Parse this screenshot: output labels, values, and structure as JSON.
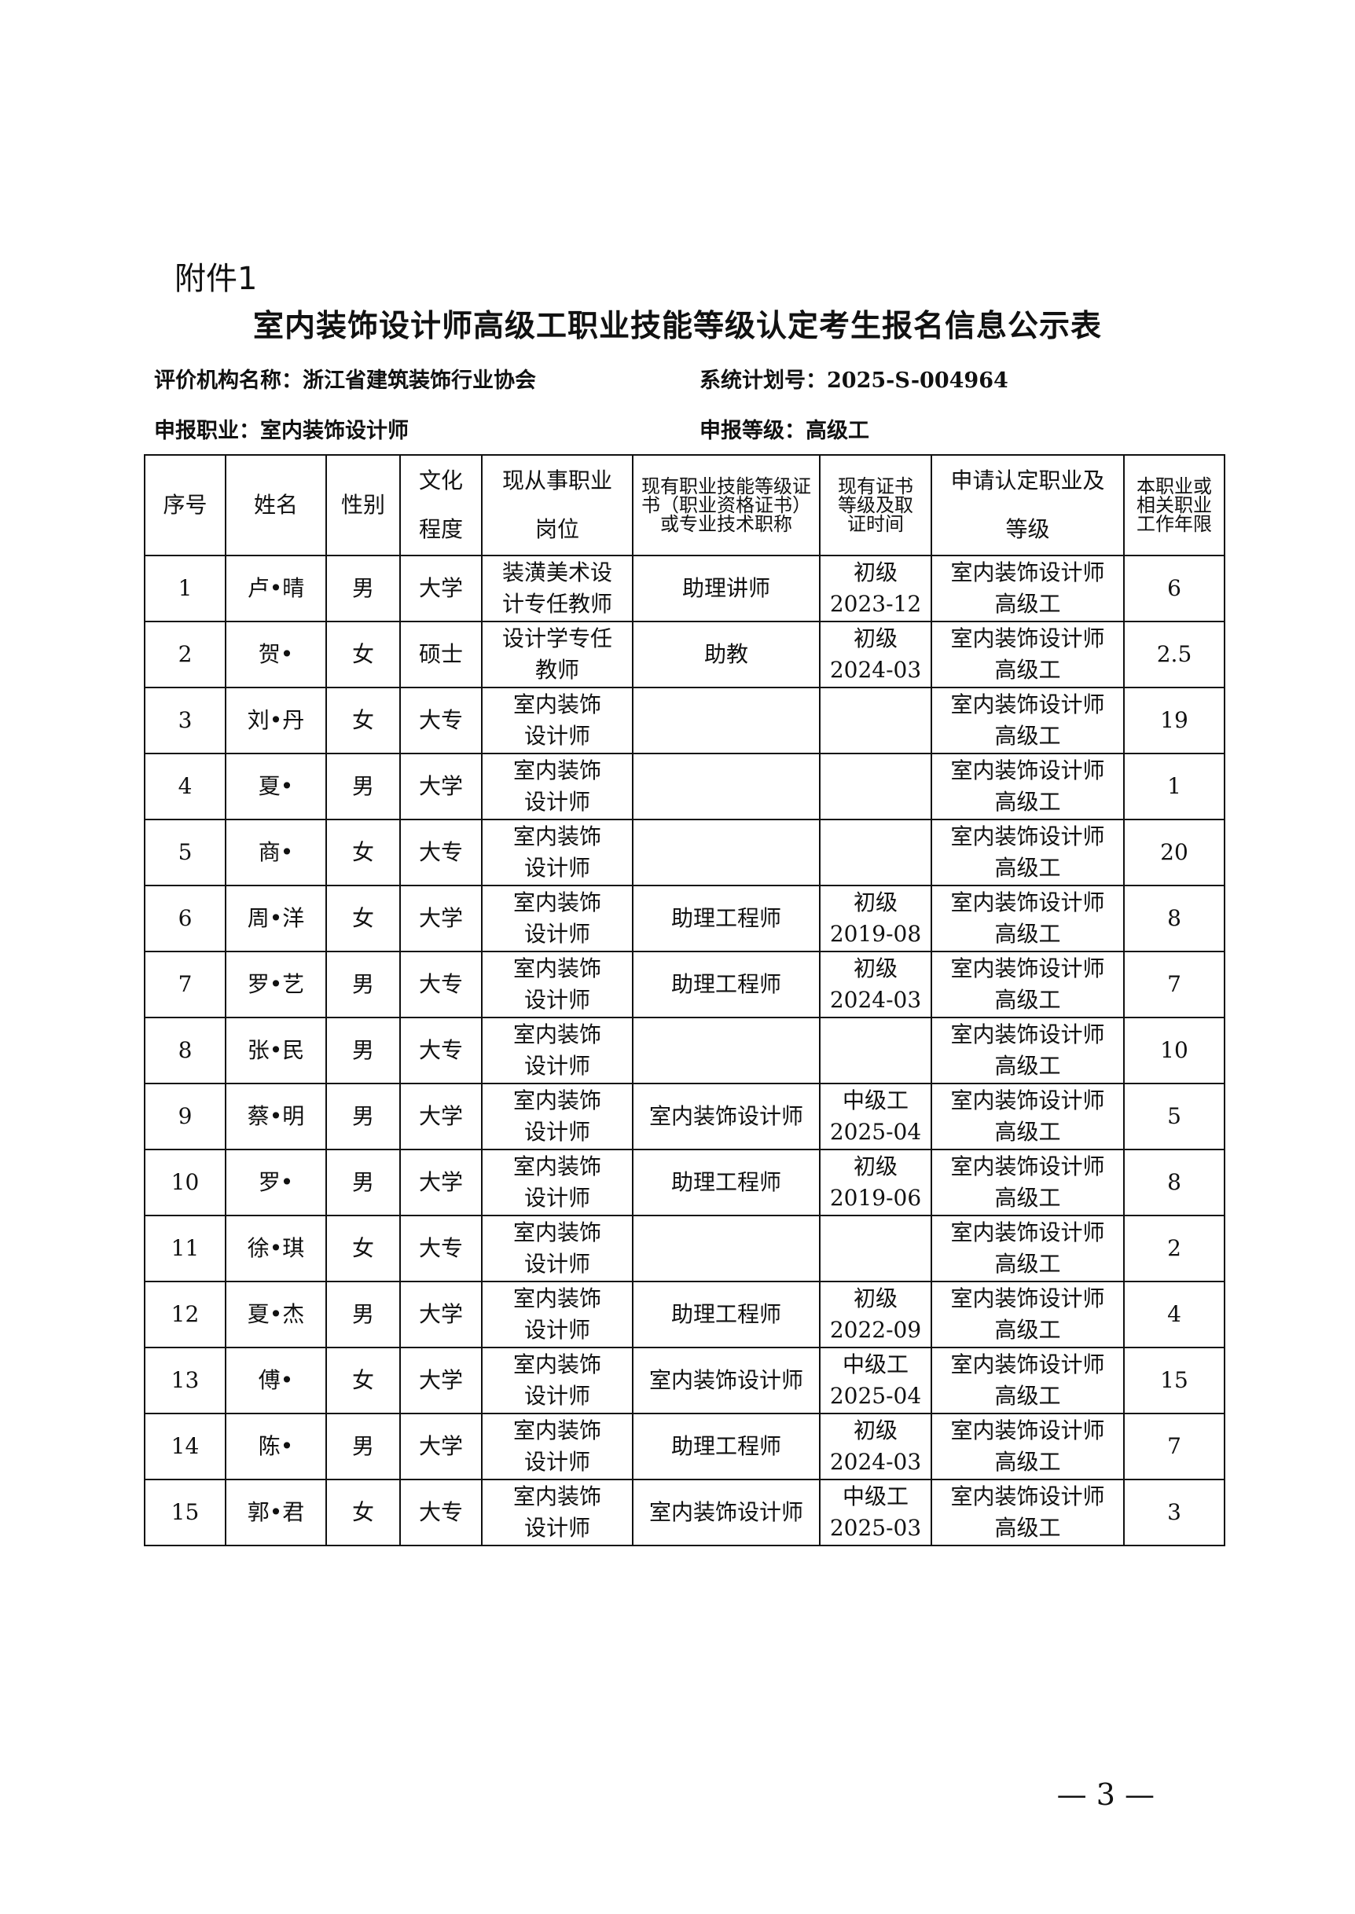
{
  "attachment_label": "附件1",
  "title": "室内装饰设计师高级工职业技能等级认定考生报名信息公示表",
  "meta": {
    "org_label": "评价机构名称：",
    "org_value": "浙江省建筑装饰行业协会",
    "plan_label": "系统计划号：",
    "plan_value": "2025-S-004964",
    "occupation_label": "申报职业：",
    "occupation_value": "室内装饰设计师",
    "level_label": "申报等级：",
    "level_value": "高级工"
  },
  "table": {
    "headers": [
      "序号",
      "姓名",
      "性别",
      "文化\n程度",
      "现从事职业\n岗位",
      "现有职业技能等级证书（职业资格证书）或专业技术职称",
      "现有证书等级及取证时间",
      "申请认定职业及\n等级",
      "本职业或相关职业工作年限"
    ],
    "rows": [
      [
        "1",
        "卢•晴",
        "男",
        "大学",
        "装潢美术设\n计专任教师",
        "助理讲师",
        "初级\n2023-12",
        "室内装饰设计师\n高级工",
        "6"
      ],
      [
        "2",
        "贺•",
        "女",
        "硕士",
        "设计学专任\n教师",
        "助教",
        "初级\n2024-03",
        "室内装饰设计师\n高级工",
        "2.5"
      ],
      [
        "3",
        "刘•丹",
        "女",
        "大专",
        "室内装饰\n设计师",
        "",
        "",
        "室内装饰设计师\n高级工",
        "19"
      ],
      [
        "4",
        "夏•",
        "男",
        "大学",
        "室内装饰\n设计师",
        "",
        "",
        "室内装饰设计师\n高级工",
        "1"
      ],
      [
        "5",
        "商•",
        "女",
        "大专",
        "室内装饰\n设计师",
        "",
        "",
        "室内装饰设计师\n高级工",
        "20"
      ],
      [
        "6",
        "周•洋",
        "女",
        "大学",
        "室内装饰\n设计师",
        "助理工程师",
        "初级\n2019-08",
        "室内装饰设计师\n高级工",
        "8"
      ],
      [
        "7",
        "罗•艺",
        "男",
        "大专",
        "室内装饰\n设计师",
        "助理工程师",
        "初级\n2024-03",
        "室内装饰设计师\n高级工",
        "7"
      ],
      [
        "8",
        "张•民",
        "男",
        "大专",
        "室内装饰\n设计师",
        "",
        "",
        "室内装饰设计师\n高级工",
        "10"
      ],
      [
        "9",
        "蔡•明",
        "男",
        "大学",
        "室内装饰\n设计师",
        "室内装饰设计师",
        "中级工\n2025-04",
        "室内装饰设计师\n高级工",
        "5"
      ],
      [
        "10",
        "罗•",
        "男",
        "大学",
        "室内装饰\n设计师",
        "助理工程师",
        "初级\n2019-06",
        "室内装饰设计师\n高级工",
        "8"
      ],
      [
        "11",
        "徐•琪",
        "女",
        "大专",
        "室内装饰\n设计师",
        "",
        "",
        "室内装饰设计师\n高级工",
        "2"
      ],
      [
        "12",
        "夏•杰",
        "男",
        "大学",
        "室内装饰\n设计师",
        "助理工程师",
        "初级\n2022-09",
        "室内装饰设计师\n高级工",
        "4"
      ],
      [
        "13",
        "傅•",
        "女",
        "大学",
        "室内装饰\n设计师",
        "室内装饰设计师",
        "中级工\n2025-04",
        "室内装饰设计师\n高级工",
        "15"
      ],
      [
        "14",
        "陈•",
        "男",
        "大学",
        "室内装饰\n设计师",
        "助理工程师",
        "初级\n2024-03",
        "室内装饰设计师\n高级工",
        "7"
      ],
      [
        "15",
        "郭•君",
        "女",
        "大专",
        "室内装饰\n设计师",
        "室内装饰设计师",
        "中级工\n2025-03",
        "室内装饰设计师\n高级工",
        "3"
      ]
    ]
  },
  "page_number": "— 3 —"
}
